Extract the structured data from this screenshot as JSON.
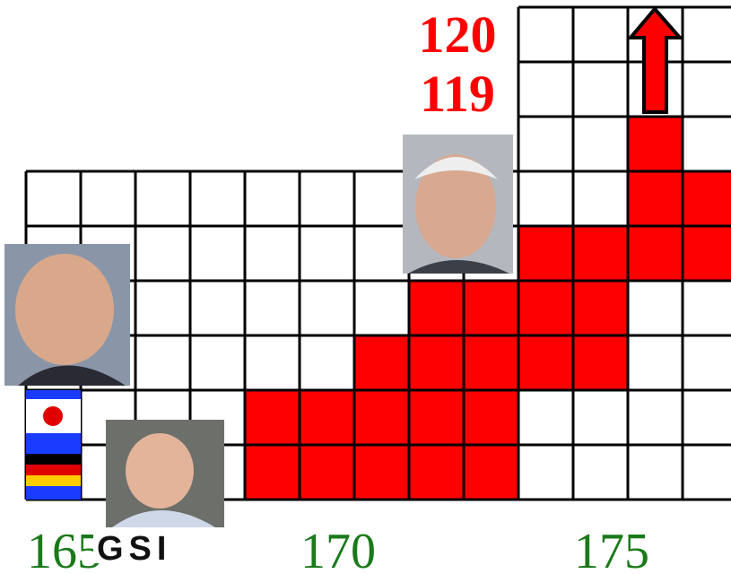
{
  "labels": {
    "z120": "120",
    "z119": "119"
  },
  "axis": [
    "165",
    "170",
    "175"
  ],
  "logo": "GSI"
}
